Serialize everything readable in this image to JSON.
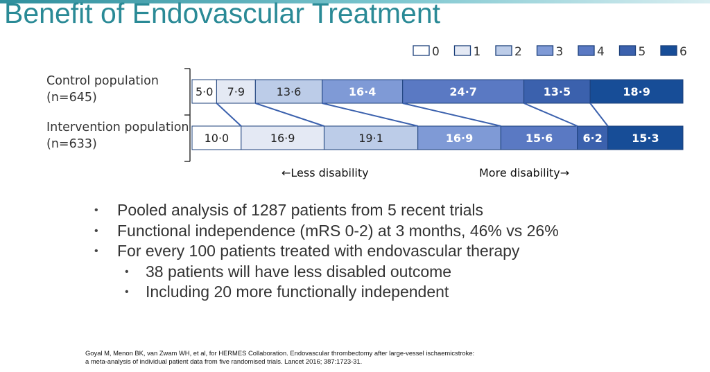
{
  "title": "Benefit of Endovascular Treatment",
  "chart_data": {
    "type": "bar",
    "subtype": "stacked-100-horizontal",
    "categories": [
      "0",
      "1",
      "2",
      "3",
      "4",
      "5",
      "6"
    ],
    "legend": {
      "placement": "top-right",
      "entries": [
        "0",
        "1",
        "2",
        "3",
        "4",
        "5",
        "6"
      ]
    },
    "colors": [
      "#ffffff",
      "#e4e9f4",
      "#bccce8",
      "#7f9ad6",
      "#5a79c3",
      "#3b61ad",
      "#174d97"
    ],
    "series": [
      {
        "name": "Control population",
        "label_lines": [
          "Control population",
          "(n=645)"
        ],
        "values": [
          5.0,
          7.9,
          13.6,
          16.4,
          24.7,
          13.5,
          18.9
        ],
        "value_labels": [
          "5·0",
          "7·9",
          "13·6",
          "16·4",
          "24·7",
          "13·5",
          "18·9"
        ]
      },
      {
        "name": "Intervention population",
        "label_lines": [
          "Intervention population",
          "(n=633)"
        ],
        "values": [
          10.0,
          16.9,
          19.1,
          16.9,
          15.6,
          6.2,
          15.3
        ],
        "value_labels": [
          "10·0",
          "16·9",
          "19·1",
          "16·9",
          "15·6",
          "6·2",
          "15·3"
        ]
      }
    ],
    "connector_lines": true,
    "annotations": {
      "less": "←Less disability",
      "more": "More disability→"
    },
    "grid": false
  },
  "bullets": [
    {
      "level": 1,
      "text": "Pooled analysis of 1287 patients from 5 recent trials"
    },
    {
      "level": 1,
      "text": "Functional independence (mRS 0-2) at 3 months, 46% vs 26%"
    },
    {
      "level": 1,
      "text": "For every 100 patients treated with endovascular therapy"
    },
    {
      "level": 2,
      "text": "38 patients will have less disabled outcome"
    },
    {
      "level": 2,
      "text": "Including 20 more functionally independent"
    }
  ],
  "citation": {
    "line1": "Goyal M, Menon BK, van Zwam WH, et al, for HERMES Collaboration. Endovascular thrombectomy after large-vessel ischaemicstroke:",
    "line2": "a meta-analysis of individual patient data from five randomised trials. Lancet 2016; 387:1723-31."
  }
}
